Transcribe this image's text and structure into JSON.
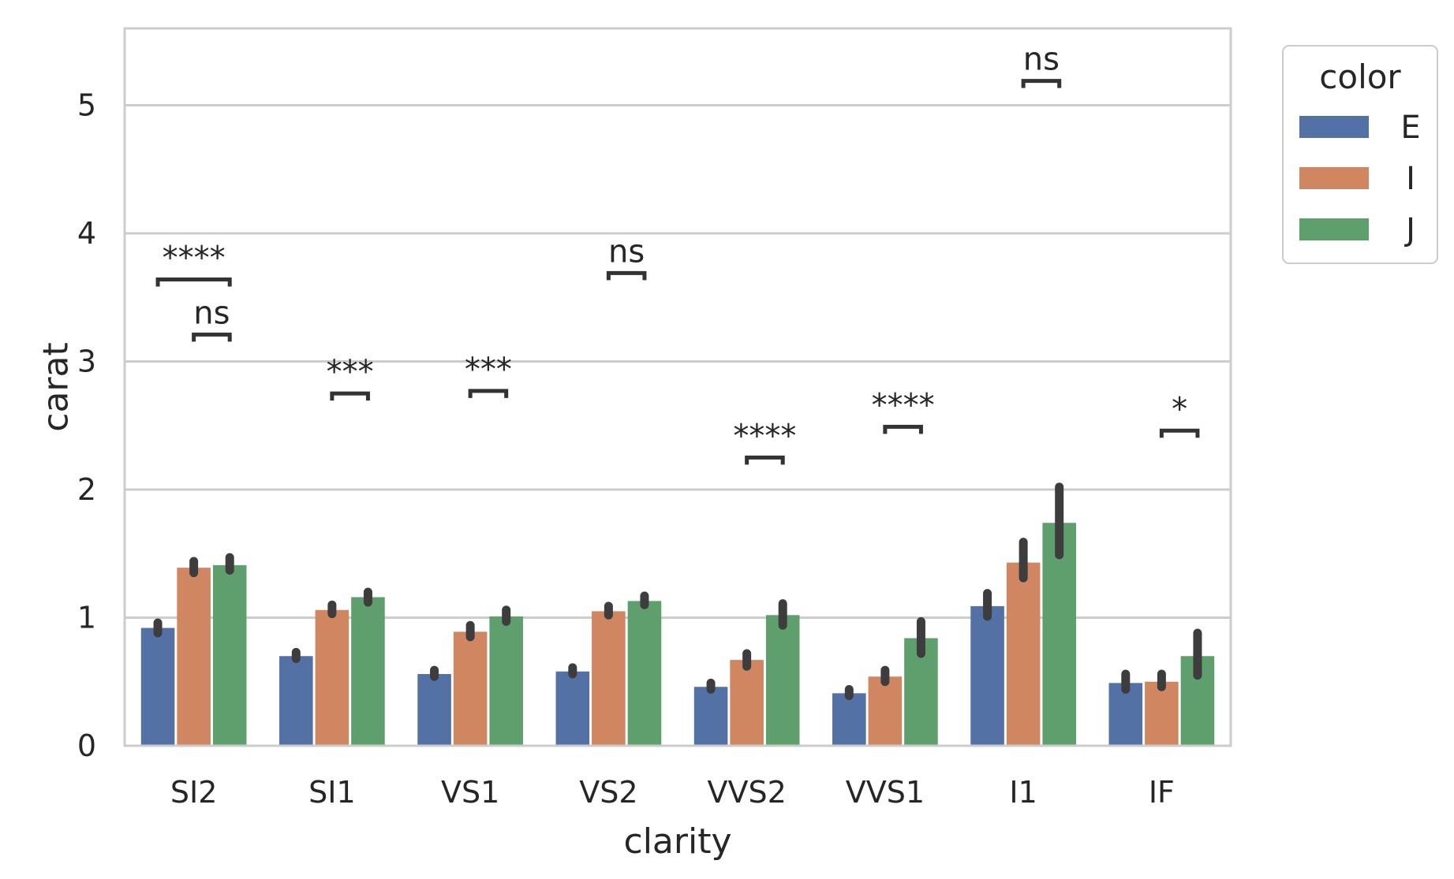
{
  "chart_data": {
    "type": "bar",
    "title": "",
    "xlabel": "clarity",
    "ylabel": "carat",
    "ylim": [
      0,
      5.6
    ],
    "yticks": [
      0,
      1,
      2,
      3,
      4,
      5
    ],
    "grid": "y",
    "categories": [
      "SI2",
      "SI1",
      "VS1",
      "VS2",
      "VVS2",
      "VVS1",
      "I1",
      "IF"
    ],
    "legend": {
      "title": "color",
      "placement": "outside-top-right"
    },
    "series": [
      {
        "name": "E",
        "color": "#5471a6",
        "values": [
          0.92,
          0.7,
          0.56,
          0.58,
          0.46,
          0.41,
          1.09,
          0.49
        ],
        "ci": [
          [
            0.88,
            0.96
          ],
          [
            0.68,
            0.73
          ],
          [
            0.54,
            0.59
          ],
          [
            0.56,
            0.61
          ],
          [
            0.44,
            0.49
          ],
          [
            0.39,
            0.44
          ],
          [
            1.01,
            1.19
          ],
          [
            0.44,
            0.56
          ]
        ]
      },
      {
        "name": "I",
        "color": "#cf8661",
        "values": [
          1.39,
          1.06,
          0.89,
          1.05,
          0.67,
          0.54,
          1.43,
          0.5
        ],
        "ci": [
          [
            1.35,
            1.44
          ],
          [
            1.03,
            1.1
          ],
          [
            0.85,
            0.94
          ],
          [
            1.02,
            1.09
          ],
          [
            0.62,
            0.72
          ],
          [
            0.5,
            0.59
          ],
          [
            1.31,
            1.59
          ],
          [
            0.46,
            0.56
          ]
        ]
      },
      {
        "name": "J",
        "color": "#5f9f6e",
        "values": [
          1.41,
          1.16,
          1.01,
          1.13,
          1.02,
          0.84,
          1.74,
          0.7
        ],
        "ci": [
          [
            1.37,
            1.47
          ],
          [
            1.12,
            1.2
          ],
          [
            0.97,
            1.06
          ],
          [
            1.1,
            1.17
          ],
          [
            0.94,
            1.11
          ],
          [
            0.72,
            0.97
          ],
          [
            1.49,
            2.02
          ],
          [
            0.55,
            0.88
          ]
        ]
      }
    ],
    "annotations": [
      {
        "category": "SI2",
        "from": "E",
        "to": "J",
        "y": 3.64,
        "label": "****"
      },
      {
        "category": "SI2",
        "from": "I",
        "to": "J",
        "y": 3.21,
        "label": "ns"
      },
      {
        "category": "SI1",
        "from": "I",
        "to": "J",
        "y": 2.75,
        "label": "***"
      },
      {
        "category": "VS1",
        "from": "I",
        "to": "J",
        "y": 2.77,
        "label": "***"
      },
      {
        "category": "VS2",
        "from": "I",
        "to": "J",
        "y": 3.69,
        "label": "ns"
      },
      {
        "category": "VVS2",
        "from": "I",
        "to": "J",
        "y": 2.25,
        "label": "****"
      },
      {
        "category": "VVS1",
        "from": "I",
        "to": "J",
        "y": 2.49,
        "label": "****"
      },
      {
        "category": "I1",
        "from": "I",
        "to": "J",
        "y": 5.19,
        "label": "ns"
      },
      {
        "category": "IF",
        "from": "I",
        "to": "J",
        "y": 2.46,
        "label": "*"
      }
    ]
  }
}
